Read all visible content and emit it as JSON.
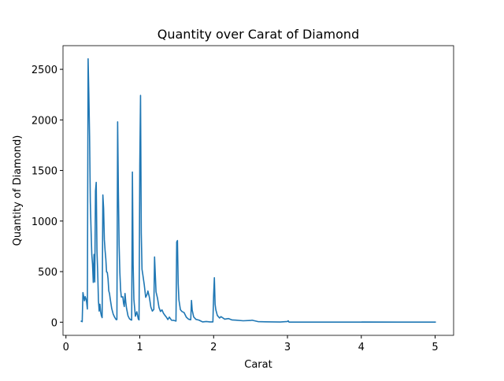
{
  "chart_data": {
    "type": "line",
    "title": "Quantity over Carat of Diamond",
    "xlabel": "Carat",
    "ylabel": "Quantity of Diamond)",
    "x": [
      0.2,
      0.21,
      0.22,
      0.23,
      0.24,
      0.25,
      0.26,
      0.27,
      0.28,
      0.29,
      0.3,
      0.31,
      0.32,
      0.33,
      0.34,
      0.35,
      0.36,
      0.37,
      0.38,
      0.39,
      0.4,
      0.41,
      0.42,
      0.43,
      0.44,
      0.45,
      0.46,
      0.47,
      0.48,
      0.49,
      0.5,
      0.51,
      0.52,
      0.53,
      0.54,
      0.55,
      0.56,
      0.57,
      0.58,
      0.59,
      0.6,
      0.62,
      0.64,
      0.66,
      0.68,
      0.69,
      0.7,
      0.71,
      0.72,
      0.73,
      0.74,
      0.75,
      0.77,
      0.78,
      0.79,
      0.8,
      0.81,
      0.82,
      0.84,
      0.86,
      0.88,
      0.89,
      0.9,
      0.91,
      0.92,
      0.93,
      0.94,
      0.96,
      0.98,
      0.99,
      1.0,
      1.01,
      1.02,
      1.03,
      1.04,
      1.06,
      1.08,
      1.1,
      1.11,
      1.13,
      1.15,
      1.17,
      1.19,
      1.2,
      1.21,
      1.22,
      1.24,
      1.26,
      1.28,
      1.3,
      1.32,
      1.34,
      1.36,
      1.38,
      1.4,
      1.43,
      1.46,
      1.49,
      1.5,
      1.51,
      1.52,
      1.53,
      1.55,
      1.57,
      1.6,
      1.63,
      1.66,
      1.69,
      1.7,
      1.71,
      1.73,
      1.76,
      1.8,
      1.85,
      1.9,
      1.95,
      1.99,
      2.0,
      2.01,
      2.02,
      2.03,
      2.05,
      2.08,
      2.1,
      2.15,
      2.2,
      2.25,
      2.3,
      2.4,
      2.5,
      2.52,
      2.6,
      2.7,
      2.8,
      2.9,
      3.0,
      3.01,
      3.02,
      3.2,
      3.5,
      4.0,
      4.01,
      4.5,
      5.01
    ],
    "series": [
      {
        "name": "Quantity",
        "color": "#1f77b4",
        "values": [
          12,
          9,
          5,
          293,
          254,
          212,
          253,
          233,
          198,
          130,
          2604,
          2249,
          1840,
          1189,
          910,
          667,
          572,
          394,
          670,
          398,
          1299,
          1382,
          706,
          488,
          212,
          110,
          178,
          99,
          63,
          45,
          1258,
          1127,
          817,
          709,
          625,
          496,
          492,
          430,
          310,
          282,
          228,
          135,
          80,
          48,
          25,
          26,
          1981,
          1294,
          764,
          492,
          322,
          249,
          251,
          187,
          155,
          284,
          200,
          140,
          64,
          34,
          23,
          21,
          1485,
          570,
          226,
          142,
          59,
          103,
          31,
          23,
          1558,
          2242,
          883,
          523,
          475,
          373,
          246,
          278,
          308,
          246,
          149,
          110,
          126,
          645,
          473,
          300,
          236,
          146,
          106,
          122,
          89,
          68,
          50,
          26,
          50,
          19,
          18,
          11,
          793,
          807,
          381,
          220,
          124,
          106,
          95,
          50,
          30,
          24,
          215,
          119,
          52,
          28,
          21,
          3,
          7,
          3,
          3,
          265,
          440,
          177,
          122,
          67,
          41,
          55,
          30,
          36,
          22,
          20,
          14,
          17,
          20,
          6,
          4,
          3,
          2,
          7,
          14,
          1,
          1,
          1,
          1,
          2,
          1,
          1
        ]
      }
    ],
    "xlim": [
      -0.04,
      5.25
    ],
    "ylim": [
      -130,
      2734
    ],
    "xticks": [
      0,
      1,
      2,
      3,
      4,
      5
    ],
    "yticks": [
      0,
      500,
      1000,
      1500,
      2000,
      2500
    ],
    "grid": false
  }
}
